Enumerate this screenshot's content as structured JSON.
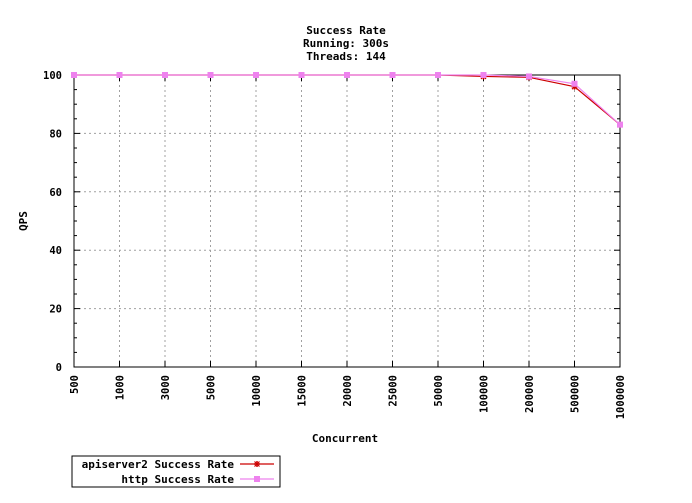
{
  "chart_data": {
    "type": "line",
    "title": [
      "Success Rate",
      "Running: 300s",
      "Threads: 144"
    ],
    "xlabel": "Concurrent",
    "ylabel": "QPS",
    "categories": [
      "500",
      "1000",
      "3000",
      "5000",
      "10000",
      "15000",
      "20000",
      "25000",
      "50000",
      "100000",
      "200000",
      "500000",
      "1000000"
    ],
    "ylim": [
      0,
      100
    ],
    "yticks": [
      "0",
      "20",
      "40",
      "60",
      "80",
      "100"
    ],
    "grid": true,
    "legend_position": "bottom-left",
    "series": [
      {
        "name": "apiserver2 Success Rate",
        "color": "#cc0000",
        "marker": "star",
        "values": [
          100,
          100,
          100,
          100,
          100,
          100,
          100,
          100,
          100,
          99.5,
          99.2,
          96,
          83
        ]
      },
      {
        "name": "http Success Rate",
        "color": "#ee82ee",
        "marker": "square",
        "values": [
          100,
          100,
          100,
          100,
          100,
          100,
          100,
          100,
          100,
          100,
          99.5,
          97,
          83
        ]
      }
    ]
  }
}
